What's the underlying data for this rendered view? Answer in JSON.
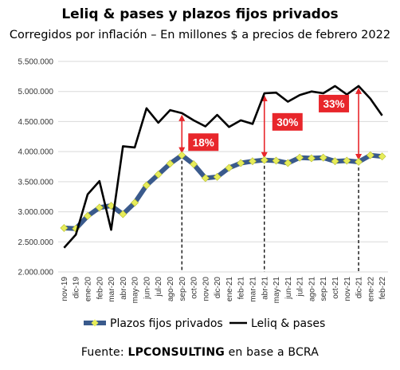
{
  "title": "Leliq & pases y plazos fijos privados",
  "subtitle": "Corregidos por inflación – En millones $ a precios de febrero 2022",
  "source": {
    "prefix": "Fuente: ",
    "brand": "LPCONSULTING",
    "suffix": " en base a BCRA"
  },
  "chart_data": {
    "type": "line",
    "x": [
      "nov-19",
      "dic-19",
      "ene-20",
      "feb-20",
      "mar-20",
      "abr-20",
      "may-20",
      "jun-20",
      "jul-20",
      "ago-20",
      "sep-20",
      "oct-20",
      "nov-20",
      "dic-20",
      "ene-21",
      "feb-21",
      "mar-21",
      "abr-21",
      "may-21",
      "jun-21",
      "jul-21",
      "ago-21",
      "sep-21",
      "oct-21",
      "nov-21",
      "dic-21",
      "ene-22",
      "feb-22"
    ],
    "yticks": [
      "2.000.000",
      "2.500.000",
      "3.000.000",
      "3.500.000",
      "4.000.000",
      "4.500.000",
      "5.000.000",
      "5.500.000"
    ],
    "ylim": [
      2000000,
      5500000
    ],
    "grid": true,
    "legend_position": "bottom",
    "series": [
      {
        "name": "Plazos fijos privados",
        "color": "#3a5a8c",
        "marker_color": "#e6ec5a",
        "values": [
          2730000,
          2720000,
          2930000,
          3070000,
          3100000,
          2960000,
          3150000,
          3440000,
          3620000,
          3800000,
          3940000,
          3790000,
          3560000,
          3580000,
          3730000,
          3810000,
          3840000,
          3860000,
          3850000,
          3810000,
          3900000,
          3890000,
          3900000,
          3840000,
          3850000,
          3830000,
          3940000,
          3920000
        ]
      },
      {
        "name": "Leliq & pases",
        "color": "#000000",
        "values": [
          2400000,
          2620000,
          3290000,
          3510000,
          2700000,
          4090000,
          4070000,
          4720000,
          4480000,
          4690000,
          4640000,
          4520000,
          4420000,
          4610000,
          4410000,
          4520000,
          4460000,
          4970000,
          4980000,
          4830000,
          4940000,
          5000000,
          4970000,
          5090000,
          4950000,
          5090000,
          4880000,
          4600000
        ]
      }
    ],
    "annotations": [
      {
        "label": "18%",
        "index": 10
      },
      {
        "label": "30%",
        "index": 17
      },
      {
        "label": "33%",
        "index": 25
      }
    ]
  }
}
